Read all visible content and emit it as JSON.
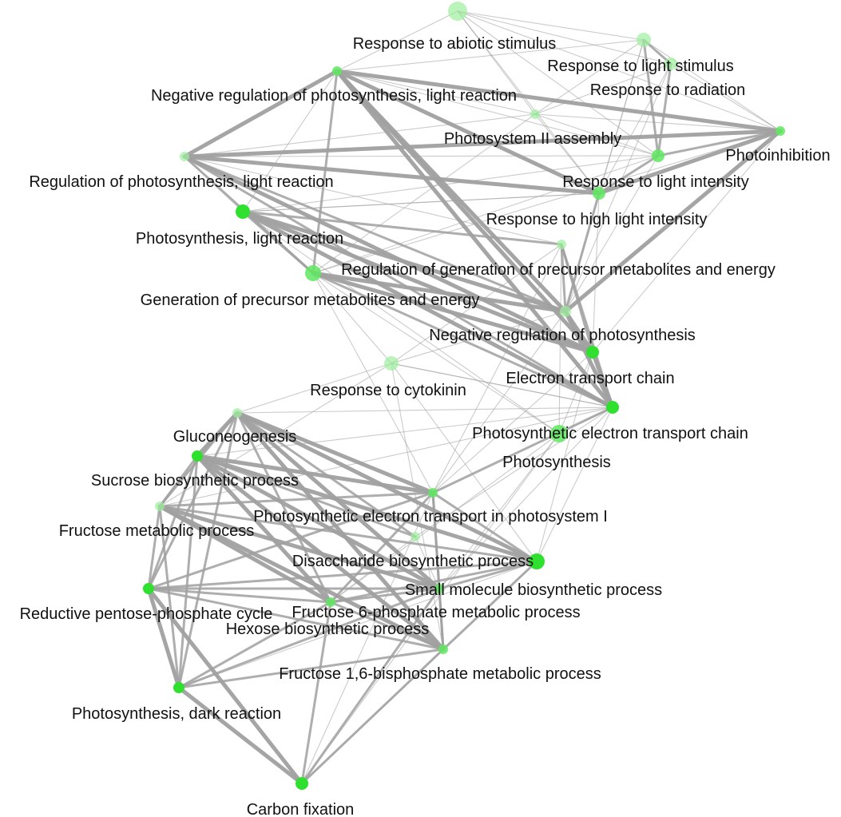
{
  "colors": {
    "background": "#ffffff",
    "edge": "#a0a0a0",
    "node_dark": "#2fe02f",
    "node_light": "#9ef09e",
    "text": "#111111"
  },
  "nodes": [
    {
      "id": "abiotic",
      "label": "Response to abiotic stimulus",
      "shade": "light"
    },
    {
      "id": "light_stim",
      "label": "Response to light stimulus",
      "shade": "light"
    },
    {
      "id": "radiation",
      "label": "Response to radiation",
      "shade": "light"
    },
    {
      "id": "neg_reg_ps_lr",
      "label": "Negative regulation of photosynthesis, light reaction",
      "shade": "mid"
    },
    {
      "id": "psii",
      "label": "Photosystem II assembly",
      "shade": "light"
    },
    {
      "id": "photoinhibition",
      "label": "Photoinhibition",
      "shade": "mid"
    },
    {
      "id": "reg_ps_lr",
      "label": "Regulation of photosynthesis, light reaction",
      "shade": "light"
    },
    {
      "id": "light_intensity",
      "label": "Response to light intensity",
      "shade": "mid"
    },
    {
      "id": "ps_lr",
      "label": "Photosynthesis, light reaction",
      "shade": "dark"
    },
    {
      "id": "high_light",
      "label": "Response to high light intensity",
      "shade": "mid"
    },
    {
      "id": "reg_gen_precursor",
      "label": "Regulation of generation of precursor metabolites and energy",
      "shade": "light"
    },
    {
      "id": "gen_precursor",
      "label": "Generation of precursor metabolites and energy",
      "shade": "mid"
    },
    {
      "id": "neg_reg_ps",
      "label": "Negative regulation of photosynthesis",
      "shade": "light"
    },
    {
      "id": "cytokinin",
      "label": "Response to cytokinin",
      "shade": "light"
    },
    {
      "id": "etc",
      "label": "Electron transport chain",
      "shade": "dark"
    },
    {
      "id": "ps_etc",
      "label": "Photosynthetic electron transport chain",
      "shade": "dark"
    },
    {
      "id": "photosynthesis",
      "label": "Photosynthesis",
      "shade": "mid"
    },
    {
      "id": "gluconeogenesis",
      "label": "Gluconeogenesis",
      "shade": "light"
    },
    {
      "id": "sucrose",
      "label": "Sucrose biosynthetic process",
      "shade": "dark"
    },
    {
      "id": "fructose_met",
      "label": "Fructose metabolic process",
      "shade": "light"
    },
    {
      "id": "ps_et_psi",
      "label": "Photosynthetic electron transport in photosystem I",
      "shade": "mid"
    },
    {
      "id": "disaccharide",
      "label": "Disaccharide biosynthetic process",
      "shade": "light"
    },
    {
      "id": "small_molecule",
      "label": "Small molecule biosynthetic process",
      "shade": "dark"
    },
    {
      "id": "rpp_cycle",
      "label": "Reductive pentose-phosphate cycle",
      "shade": "dark"
    },
    {
      "id": "f6p",
      "label": "Fructose 6-phosphate metabolic process",
      "shade": "mid"
    },
    {
      "id": "hexose",
      "label": "Hexose biosynthetic process",
      "shade": "mid"
    },
    {
      "id": "f16bp",
      "label": "Fructose 1,6-bisphosphate metabolic process",
      "shade": "mid"
    },
    {
      "id": "ps_dark",
      "label": "Photosynthesis, dark reaction",
      "shade": "dark"
    },
    {
      "id": "carbon_fixation",
      "label": "Carbon fixation",
      "shade": "dark"
    }
  ],
  "edges": [
    [
      "neg_reg_ps_lr",
      "photoinhibition",
      3
    ],
    [
      "neg_reg_ps_lr",
      "reg_ps_lr",
      3
    ],
    [
      "neg_reg_ps_lr",
      "high_light",
      3
    ],
    [
      "neg_reg_ps_lr",
      "etc",
      3
    ],
    [
      "neg_reg_ps_lr",
      "neg_reg_ps",
      3
    ],
    [
      "neg_reg_ps_lr",
      "ps_etc",
      3
    ],
    [
      "neg_reg_ps_lr",
      "gen_precursor",
      2
    ],
    [
      "neg_reg_ps_lr",
      "abiotic",
      1
    ],
    [
      "neg_reg_ps_lr",
      "light_stim",
      1
    ],
    [
      "neg_reg_ps_lr",
      "psii",
      1
    ],
    [
      "neg_reg_ps_lr",
      "light_intensity",
      1
    ],
    [
      "neg_reg_ps_lr",
      "ps_lr",
      1
    ],
    [
      "reg_ps_lr",
      "photoinhibition",
      3
    ],
    [
      "reg_ps_lr",
      "high_light",
      3
    ],
    [
      "reg_ps_lr",
      "etc",
      3
    ],
    [
      "reg_ps_lr",
      "neg_reg_ps",
      2
    ],
    [
      "reg_ps_lr",
      "ps_etc",
      2
    ],
    [
      "reg_ps_lr",
      "gen_precursor",
      2
    ],
    [
      "reg_ps_lr",
      "psii",
      1
    ],
    [
      "reg_ps_lr",
      "light_intensity",
      1
    ],
    [
      "photoinhibition",
      "high_light",
      3
    ],
    [
      "photoinhibition",
      "neg_reg_ps",
      3
    ],
    [
      "photoinhibition",
      "light_intensity",
      2
    ],
    [
      "photoinhibition",
      "radiation",
      1
    ],
    [
      "photoinhibition",
      "light_stim",
      1
    ],
    [
      "photoinhibition",
      "abiotic",
      1
    ],
    [
      "photoinhibition",
      "psii",
      1
    ],
    [
      "photoinhibition",
      "etc",
      1
    ],
    [
      "photoinhibition",
      "gen_precursor",
      1
    ],
    [
      "high_light",
      "neg_reg_ps",
      2
    ],
    [
      "high_light",
      "light_intensity",
      2
    ],
    [
      "high_light",
      "radiation",
      1
    ],
    [
      "high_light",
      "light_stim",
      1
    ],
    [
      "high_light",
      "abiotic",
      1
    ],
    [
      "high_light",
      "psii",
      1
    ],
    [
      "high_light",
      "etc",
      1
    ],
    [
      "high_light",
      "ps_lr",
      1
    ],
    [
      "abiotic",
      "light_stim",
      1
    ],
    [
      "abiotic",
      "radiation",
      1
    ],
    [
      "abiotic",
      "psii",
      1
    ],
    [
      "abiotic",
      "light_intensity",
      1
    ],
    [
      "light_stim",
      "radiation",
      2
    ],
    [
      "light_stim",
      "light_intensity",
      2
    ],
    [
      "light_stim",
      "neg_reg_ps",
      1
    ],
    [
      "light_stim",
      "psii",
      1
    ],
    [
      "radiation",
      "light_intensity",
      2
    ],
    [
      "radiation",
      "neg_reg_ps",
      1
    ],
    [
      "radiation",
      "psii",
      1
    ],
    [
      "psii",
      "light_intensity",
      1
    ],
    [
      "psii",
      "gen_precursor",
      1
    ],
    [
      "light_intensity",
      "neg_reg_ps",
      1
    ],
    [
      "light_intensity",
      "gen_precursor",
      1
    ],
    [
      "ps_lr",
      "neg_reg_ps",
      3
    ],
    [
      "ps_lr",
      "etc",
      3
    ],
    [
      "ps_lr",
      "ps_etc",
      3
    ],
    [
      "ps_lr",
      "gen_precursor",
      2
    ],
    [
      "ps_lr",
      "reg_gen_precursor",
      2
    ],
    [
      "ps_lr",
      "light_intensity",
      1
    ],
    [
      "gen_precursor",
      "neg_reg_ps",
      3
    ],
    [
      "gen_precursor",
      "etc",
      3
    ],
    [
      "gen_precursor",
      "ps_etc",
      2
    ],
    [
      "reg_gen_precursor",
      "neg_reg_ps",
      2
    ],
    [
      "reg_gen_precursor",
      "etc",
      2
    ],
    [
      "reg_gen_precursor",
      "ps_etc",
      2
    ],
    [
      "neg_reg_ps",
      "etc",
      3
    ],
    [
      "neg_reg_ps",
      "ps_etc",
      3
    ],
    [
      "etc",
      "ps_etc",
      3
    ],
    [
      "etc",
      "photosynthesis",
      1
    ],
    [
      "etc",
      "ps_et_psi",
      1
    ],
    [
      "ps_etc",
      "ps_et_psi",
      2
    ],
    [
      "ps_etc",
      "photosynthesis",
      1
    ],
    [
      "ps_etc",
      "disaccharide",
      1
    ],
    [
      "ps_etc",
      "gluconeogenesis",
      1
    ],
    [
      "ps_etc",
      "small_molecule",
      1
    ],
    [
      "ps_etc",
      "cytokinin",
      1
    ],
    [
      "photosynthesis",
      "f6p",
      1
    ],
    [
      "photosynthesis",
      "hexose",
      1
    ],
    [
      "cytokinin",
      "gluconeogenesis",
      1
    ],
    [
      "cytokinin",
      "ps_etc",
      1
    ],
    [
      "cytokinin",
      "reg_gen_precursor",
      1
    ],
    [
      "cytokinin",
      "gen_precursor",
      1
    ],
    [
      "cytokinin",
      "neg_reg_ps",
      1
    ],
    [
      "cytokinin",
      "fructose_met",
      1
    ],
    [
      "cytokinin",
      "f16bp",
      1
    ],
    [
      "cytokinin",
      "small_molecule",
      1
    ],
    [
      "gluconeogenesis",
      "sucrose",
      3
    ],
    [
      "gluconeogenesis",
      "ps_et_psi",
      3
    ],
    [
      "gluconeogenesis",
      "small_molecule",
      3
    ],
    [
      "gluconeogenesis",
      "f16bp",
      3
    ],
    [
      "gluconeogenesis",
      "f6p",
      3
    ],
    [
      "gluconeogenesis",
      "hexose",
      2
    ],
    [
      "gluconeogenesis",
      "fructose_met",
      2
    ],
    [
      "gluconeogenesis",
      "rpp_cycle",
      2
    ],
    [
      "gluconeogenesis",
      "disaccharide",
      2
    ],
    [
      "gluconeogenesis",
      "ps_dark",
      2
    ],
    [
      "sucrose",
      "ps_et_psi",
      3
    ],
    [
      "sucrose",
      "small_molecule",
      3
    ],
    [
      "sucrose",
      "f16bp",
      3
    ],
    [
      "sucrose",
      "f6p",
      3
    ],
    [
      "sucrose",
      "hexose",
      3
    ],
    [
      "sucrose",
      "fructose_met",
      2
    ],
    [
      "sucrose",
      "rpp_cycle",
      2
    ],
    [
      "sucrose",
      "disaccharide",
      2
    ],
    [
      "sucrose",
      "ps_dark",
      2
    ],
    [
      "fructose_met",
      "ps_et_psi",
      2
    ],
    [
      "fructose_met",
      "f6p",
      3
    ],
    [
      "fructose_met",
      "hexose",
      3
    ],
    [
      "fructose_met",
      "f16bp",
      3
    ],
    [
      "fructose_met",
      "rpp_cycle",
      2
    ],
    [
      "fructose_met",
      "ps_dark",
      2
    ],
    [
      "fructose_met",
      "small_molecule",
      2
    ],
    [
      "ps_et_psi",
      "small_molecule",
      2
    ],
    [
      "ps_et_psi",
      "f6p",
      2
    ],
    [
      "ps_et_psi",
      "hexose",
      2
    ],
    [
      "ps_et_psi",
      "f16bp",
      2
    ],
    [
      "ps_et_psi",
      "rpp_cycle",
      2
    ],
    [
      "disaccharide",
      "f6p",
      1
    ],
    [
      "disaccharide",
      "hexose",
      1
    ],
    [
      "small_molecule",
      "f6p",
      2
    ],
    [
      "small_molecule",
      "hexose",
      2
    ],
    [
      "small_molecule",
      "f16bp",
      2
    ],
    [
      "small_molecule",
      "rpp_cycle",
      2
    ],
    [
      "small_molecule",
      "ps_dark",
      1
    ],
    [
      "rpp_cycle",
      "ps_dark",
      3
    ],
    [
      "rpp_cycle",
      "carbon_fixation",
      3
    ],
    [
      "rpp_cycle",
      "f6p",
      2
    ],
    [
      "rpp_cycle",
      "hexose",
      2
    ],
    [
      "rpp_cycle",
      "f16bp",
      2
    ],
    [
      "ps_dark",
      "carbon_fixation",
      3
    ],
    [
      "ps_dark",
      "f6p",
      2
    ],
    [
      "ps_dark",
      "hexose",
      2
    ],
    [
      "ps_dark",
      "f16bp",
      2
    ],
    [
      "carbon_fixation",
      "f16bp",
      2
    ],
    [
      "carbon_fixation",
      "f6p",
      2
    ],
    [
      "carbon_fixation",
      "hexose",
      2
    ],
    [
      "carbon_fixation",
      "small_molecule",
      1
    ],
    [
      "carbon_fixation",
      "ps_et_psi",
      1
    ],
    [
      "f6p",
      "hexose",
      2
    ],
    [
      "f6p",
      "f16bp",
      2
    ],
    [
      "hexose",
      "f16bp",
      2
    ],
    [
      "gen_precursor",
      "ps_et_psi",
      1
    ],
    [
      "gen_precursor",
      "photosynthesis",
      1
    ],
    [
      "reg_gen_precursor",
      "ps_et_psi",
      1
    ],
    [
      "reg_gen_precursor",
      "photosynthesis",
      1
    ],
    [
      "neg_reg_ps",
      "ps_et_psi",
      1
    ],
    [
      "ps_etc",
      "f6p",
      1
    ],
    [
      "ps_etc",
      "sucrose",
      1
    ],
    [
      "ps_etc",
      "fructose_met",
      1
    ],
    [
      "etc",
      "small_molecule",
      1
    ],
    [
      "photosynthesis",
      "carbon_fixation",
      1
    ],
    [
      "ps_lr",
      "photosynthesis",
      1
    ],
    [
      "reg_ps_lr",
      "reg_gen_precursor",
      1
    ],
    [
      "ps_lr",
      "reg_ps_lr",
      1
    ],
    [
      "ps_lr",
      "high_light",
      1
    ]
  ]
}
